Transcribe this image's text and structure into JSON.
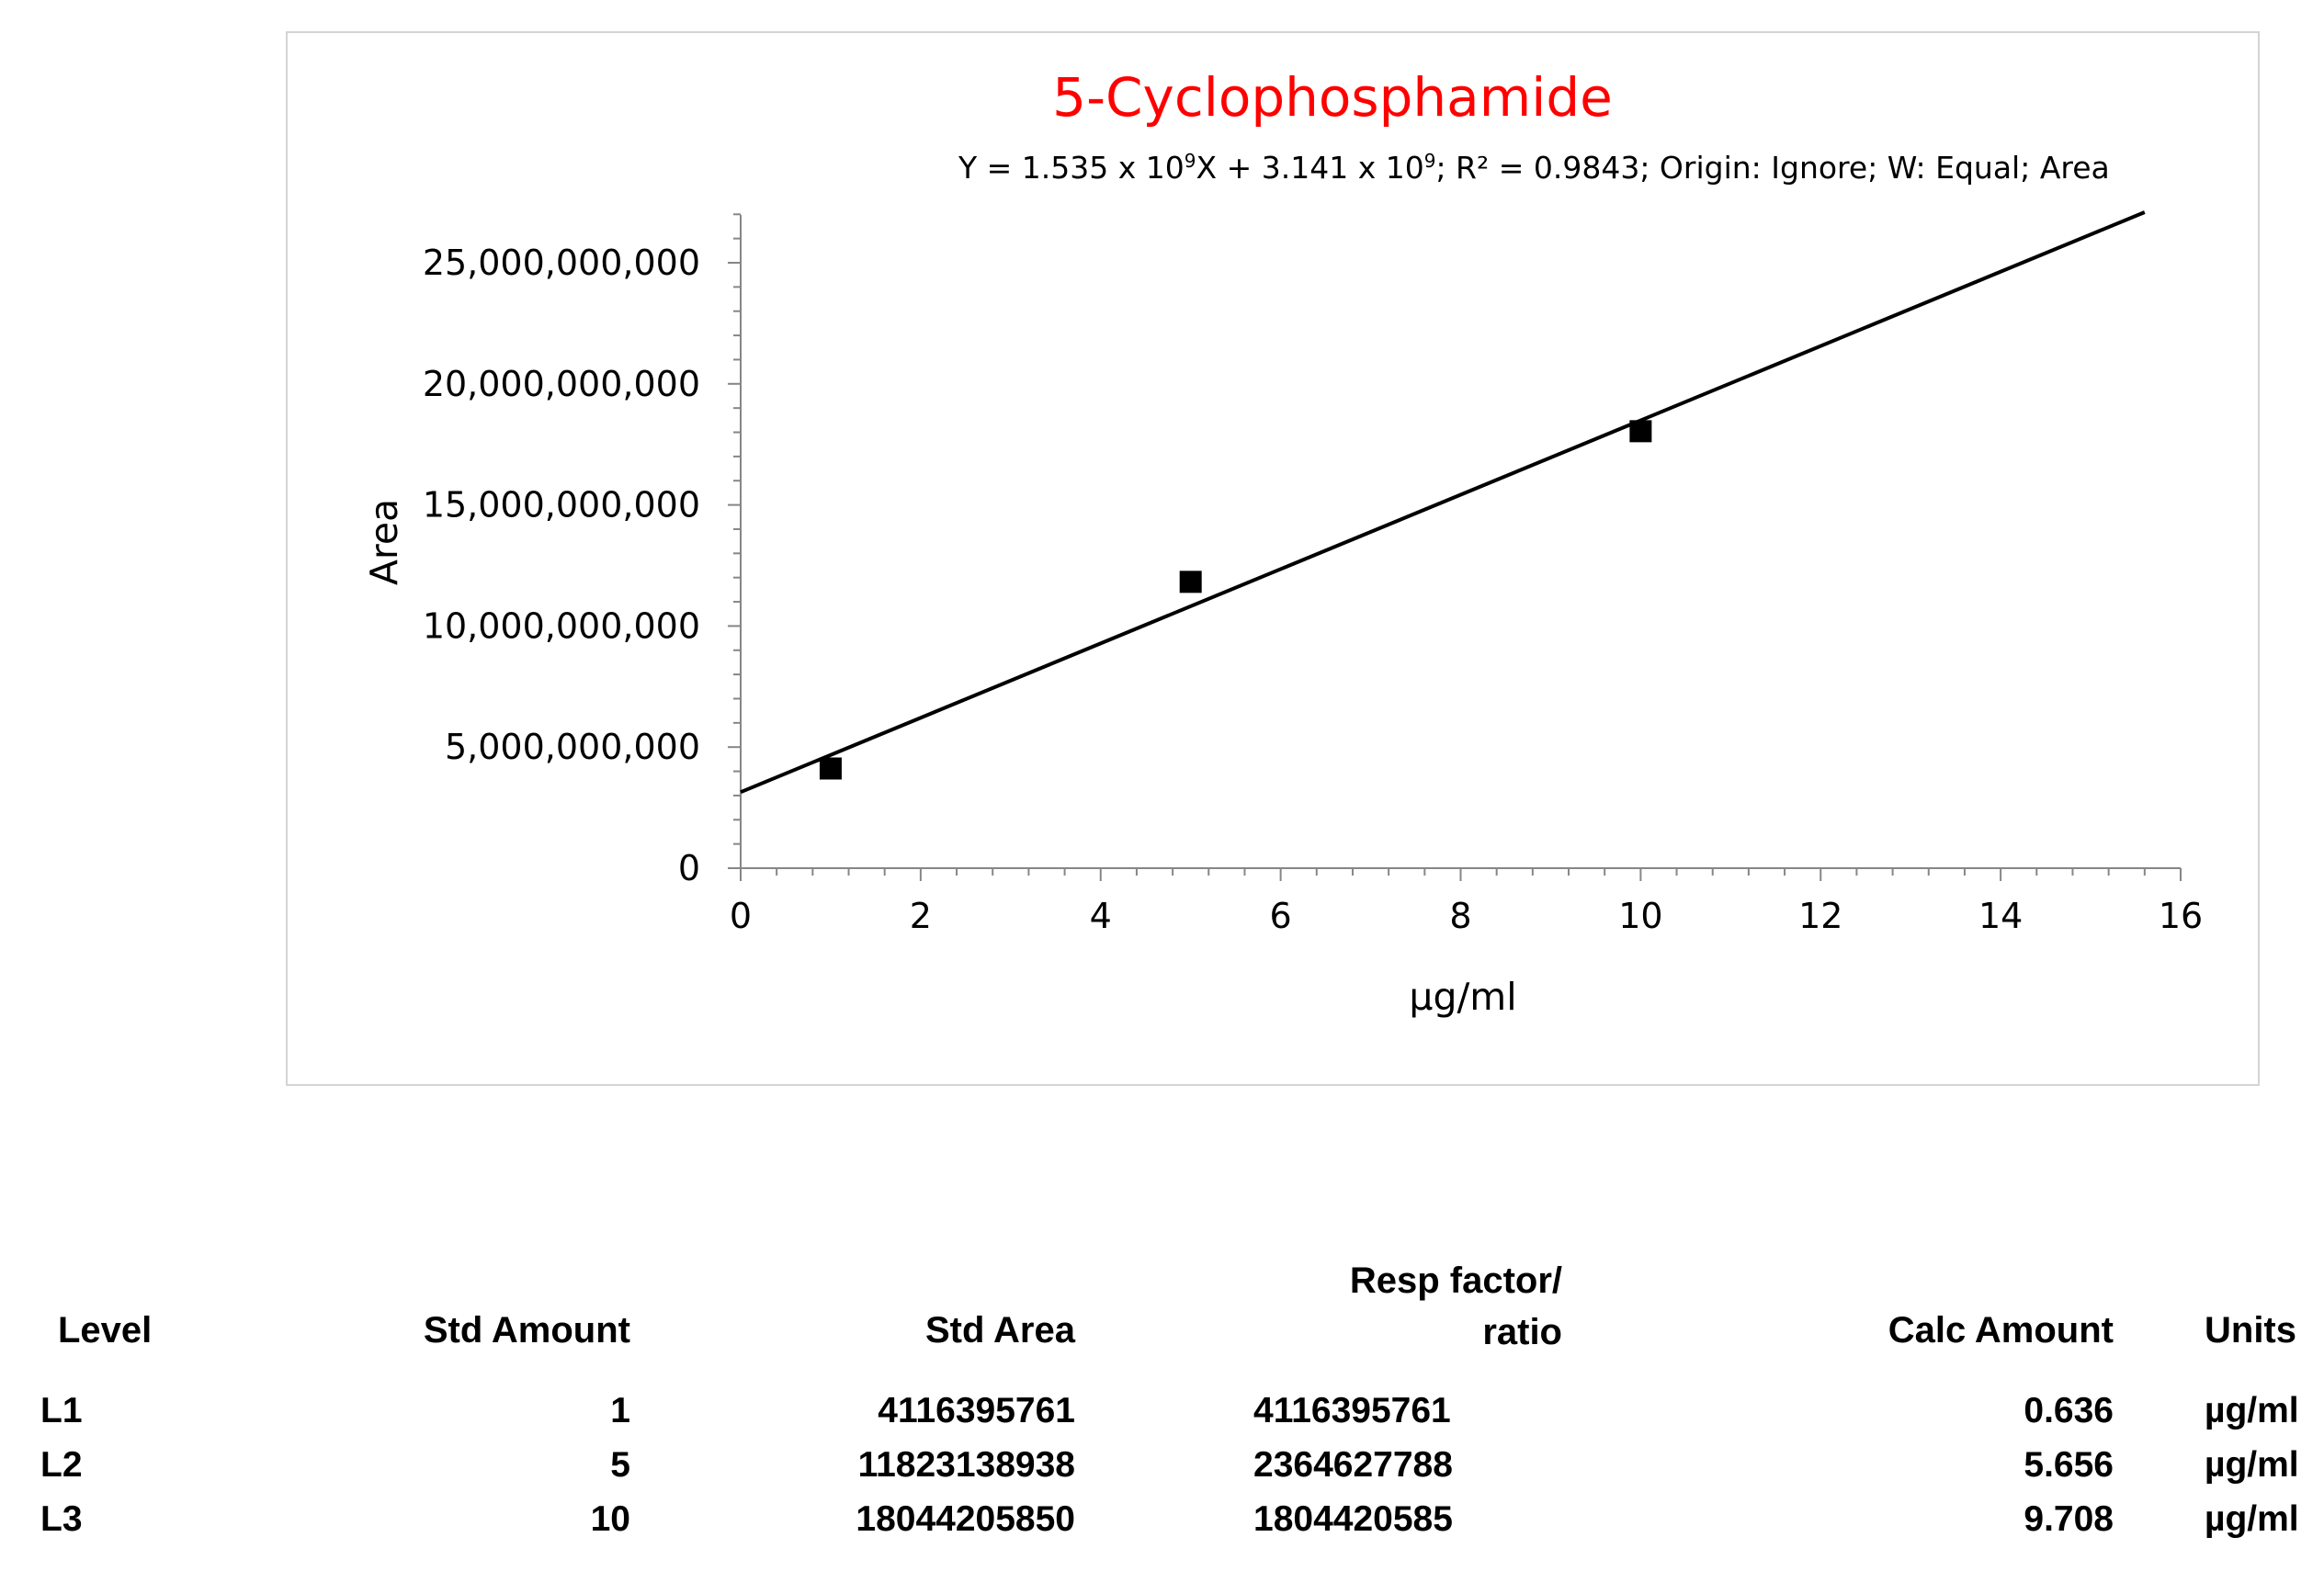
{
  "chart_data": {
    "type": "scatter",
    "title": "5-Cyclophosphamide",
    "subtitle_parts": {
      "p1": "Y = 1.535 x 10",
      "e1": "9",
      "p2": "X + 3.141 x 10",
      "e2": "9",
      "p3": "; R² = 0.9843; Origin: Ignore; W: Equal; Area"
    },
    "xlabel": "µg/ml",
    "ylabel": "Area",
    "xlim": [
      0,
      16
    ],
    "ylim": [
      0,
      25000000000
    ],
    "x_ticks": [
      0,
      2,
      4,
      6,
      8,
      10,
      12,
      14,
      16
    ],
    "x_tick_labels": [
      "0",
      "2",
      "4",
      "6",
      "8",
      "10",
      "12",
      "14",
      "16"
    ],
    "y_ticks": [
      0,
      5000000000,
      10000000000,
      15000000000,
      20000000000,
      25000000000
    ],
    "y_tick_labels": [
      "0",
      "5,000,000,000",
      "10,000,000,000",
      "15,000,000,000",
      "20,000,000,000",
      "25,000,000,000"
    ],
    "grid": false,
    "points": [
      {
        "x": 1,
        "y": 4116395761
      },
      {
        "x": 5,
        "y": 11823138938
      },
      {
        "x": 10,
        "y": 18044205850
      }
    ],
    "fit": {
      "slope": 1535000000,
      "intercept": 3141000000,
      "x_range": [
        0,
        15.6
      ]
    },
    "colors": {
      "title": "#ff0000",
      "points": "#000000",
      "line": "#000000"
    }
  },
  "table": {
    "headers": {
      "level": "Level",
      "std_amount": "Std Amount",
      "std_area": "Std Area",
      "resp_factor_line1": "Resp factor/",
      "resp_factor_line2": "ratio",
      "calc_amount": "Calc Amount",
      "units": "Units"
    },
    "rows": [
      {
        "level": "L1",
        "std_amount": "1",
        "std_area": "4116395761",
        "resp_factor": "4116395761",
        "calc_amount": "0.636",
        "units": "µg/ml"
      },
      {
        "level": "L2",
        "std_amount": "5",
        "std_area": "11823138938",
        "resp_factor": "2364627788",
        "calc_amount": "5.656",
        "units": "µg/ml"
      },
      {
        "level": "L3",
        "std_amount": "10",
        "std_area": "18044205850",
        "resp_factor": "1804420585",
        "calc_amount": "9.708",
        "units": "µg/ml"
      }
    ]
  }
}
